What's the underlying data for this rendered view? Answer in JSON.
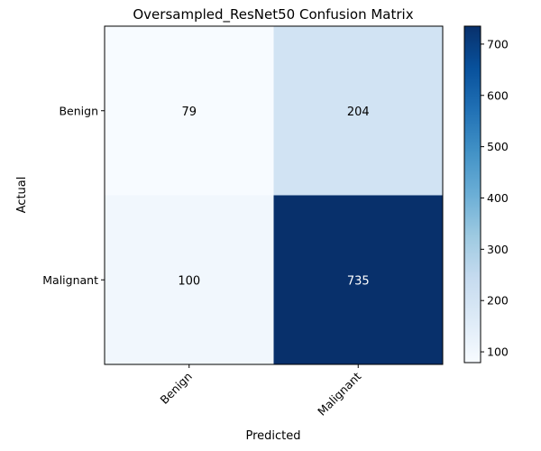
{
  "chart_data": {
    "type": "heatmap",
    "title": "Oversampled_ResNet50 Confusion Matrix",
    "xlabel": "Predicted",
    "ylabel": "Actual",
    "x_categories": [
      "Benign",
      "Malignant"
    ],
    "y_categories": [
      "Benign",
      "Malignant"
    ],
    "values": [
      [
        79,
        204
      ],
      [
        100,
        735
      ]
    ],
    "colormap": "Blues",
    "colorbar": {
      "min": 79,
      "max": 735,
      "ticks": [
        100,
        200,
        300,
        400,
        500,
        600,
        700
      ]
    },
    "label_colors": {
      "dark": "#000000",
      "light": "#ffffff"
    }
  }
}
